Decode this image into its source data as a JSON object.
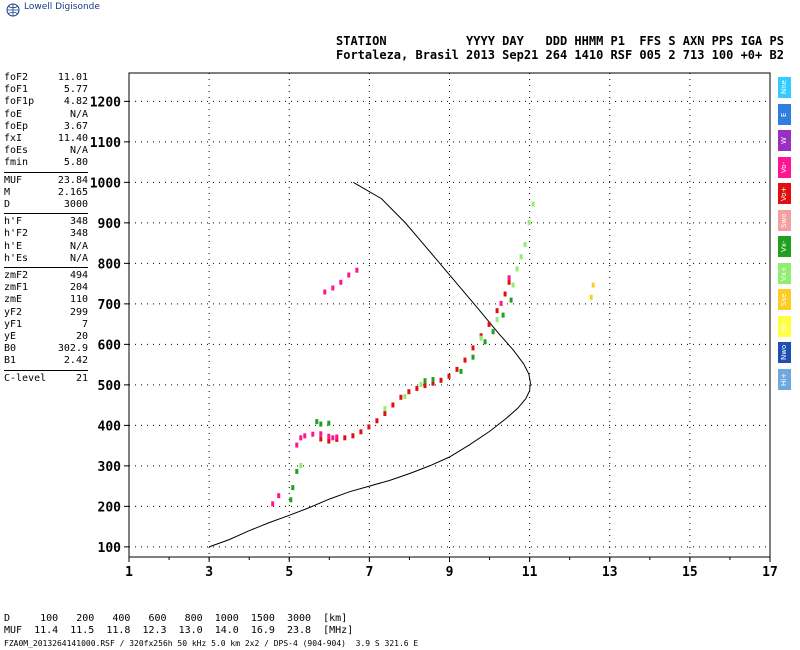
{
  "app": {
    "brand": "Lowell Digisonde"
  },
  "header": {
    "line1": "STATION           YYYY DAY   DDD HHMM P1  FFS S AXN PPS IGA PS",
    "line2": "Fortaleza, Brasil 2013 Sep21 264 1410 RSF 005 2 713 100 +0+ B2"
  },
  "params": [
    [
      {
        "k": "foF2",
        "v": "11.01"
      },
      {
        "k": "foF1",
        "v": "5.77"
      },
      {
        "k": "foF1p",
        "v": "4.82"
      },
      {
        "k": "foE",
        "v": "N/A"
      },
      {
        "k": "foEp",
        "v": "3.67"
      },
      {
        "k": "fxI",
        "v": "11.40"
      },
      {
        "k": "foEs",
        "v": "N/A"
      },
      {
        "k": "fmin",
        "v": "5.80"
      }
    ],
    [
      {
        "k": "MUF",
        "v": "23.84"
      },
      {
        "k": "M",
        "v": "2.165"
      },
      {
        "k": "D",
        "v": "3000"
      }
    ],
    [
      {
        "k": "h'F",
        "v": "348"
      },
      {
        "k": "h'F2",
        "v": "348"
      },
      {
        "k": "h'E",
        "v": "N/A"
      },
      {
        "k": "h'Es",
        "v": "N/A"
      }
    ],
    [
      {
        "k": "zmF2",
        "v": "494"
      },
      {
        "k": "zmF1",
        "v": "204"
      },
      {
        "k": "zmE",
        "v": "110"
      },
      {
        "k": "yF2",
        "v": "299"
      },
      {
        "k": "yF1",
        "v": "7"
      },
      {
        "k": "yE",
        "v": "20"
      },
      {
        "k": "B0",
        "v": "302.9"
      },
      {
        "k": "B1",
        "v": "2.42"
      }
    ],
    [
      {
        "k": "C-level",
        "v": "21"
      }
    ]
  ],
  "legend": [
    {
      "label": "Nne",
      "color": "#33ccff"
    },
    {
      "label": "E",
      "color": "#2f7fe0"
    },
    {
      "label": "W",
      "color": "#9b2fc0"
    },
    {
      "label": "Vo-",
      "color": "#ff1493"
    },
    {
      "label": "Vo+",
      "color": "#e01010"
    },
    {
      "label": "Swo",
      "color": "#f4a0a0"
    },
    {
      "label": "Vx-",
      "color": "#20a020"
    },
    {
      "label": "Vx+",
      "color": "#90ee70"
    },
    {
      "label": "Sse",
      "color": "#ffcc22"
    },
    {
      "label": "Hi-",
      "color": "#ffff44"
    },
    {
      "label": "Nwo",
      "color": "#1f4fb0"
    },
    {
      "label": "Hi+",
      "color": "#6fa8e0"
    }
  ],
  "muf_table": {
    "line1": "D     100   200   400   600   800  1000  1500  3000  [km]",
    "line2": "MUF  11.4  11.5  11.8  12.3  13.0  14.0  16.9  23.8  [MHz]"
  },
  "footer": {
    "text": "FZA0M_2013264141000.RSF / 320fx256h 50 kHz 5.0 km 2x2 / DPS-4 (904-904)  3.9 S 321.6 E"
  },
  "chart_data": {
    "type": "scatter",
    "x_ticks": [
      1,
      3,
      5,
      7,
      9,
      11,
      13,
      15,
      17
    ],
    "y_ticks": [
      100,
      200,
      300,
      400,
      500,
      600,
      700,
      800,
      900,
      1000,
      1100,
      1200
    ],
    "xlim": [
      1,
      17
    ],
    "ylim": [
      75,
      1270
    ],
    "grid": true,
    "colors": {
      "o_mode": "#e01010",
      "o_mode_alt": "#ff1493",
      "x_mode": "#20a020",
      "x_mode_light": "#90ee70",
      "profile": "#000000",
      "es": "#ffcc22"
    },
    "series": [
      {
        "name": "Vo+",
        "points": [
          [
            5.8,
            365
          ],
          [
            6.0,
            360
          ],
          [
            6.2,
            364
          ],
          [
            6.4,
            368
          ],
          [
            6.6,
            373
          ],
          [
            6.8,
            383
          ],
          [
            7.0,
            395
          ],
          [
            7.2,
            410
          ],
          [
            7.4,
            428
          ],
          [
            7.6,
            449
          ],
          [
            7.8,
            468
          ],
          [
            8.0,
            482
          ],
          [
            8.2,
            490
          ],
          [
            8.4,
            497
          ],
          [
            8.6,
            503
          ],
          [
            8.8,
            510
          ],
          [
            9.0,
            520
          ],
          [
            9.2,
            537
          ],
          [
            9.4,
            560
          ],
          [
            9.6,
            590
          ],
          [
            9.8,
            620
          ],
          [
            10.0,
            648
          ],
          [
            10.2,
            682
          ],
          [
            10.4,
            723
          ],
          [
            10.5,
            752
          ]
        ]
      },
      {
        "name": "Vo-",
        "points": [
          [
            4.6,
            205
          ],
          [
            4.75,
            225
          ],
          [
            5.2,
            350
          ],
          [
            5.3,
            368
          ],
          [
            5.4,
            373
          ],
          [
            5.6,
            377
          ],
          [
            5.8,
            378
          ],
          [
            6.0,
            372
          ],
          [
            6.1,
            368
          ],
          [
            6.2,
            370
          ],
          [
            5.9,
            728
          ],
          [
            6.1,
            738
          ],
          [
            6.3,
            752
          ],
          [
            6.5,
            770
          ],
          [
            6.7,
            782
          ],
          [
            10.3,
            700
          ],
          [
            10.5,
            763
          ]
        ]
      },
      {
        "name": "Vx-",
        "points": [
          [
            5.2,
            285
          ],
          [
            5.1,
            245
          ],
          [
            5.05,
            215
          ],
          [
            5.7,
            408
          ],
          [
            5.8,
            402
          ],
          [
            6.0,
            404
          ],
          [
            8.4,
            509
          ],
          [
            8.6,
            512
          ],
          [
            9.3,
            532
          ],
          [
            9.6,
            567
          ],
          [
            9.9,
            605
          ],
          [
            10.1,
            630
          ],
          [
            10.35,
            671
          ],
          [
            10.55,
            708
          ]
        ]
      },
      {
        "name": "Vx+",
        "points": [
          [
            5.3,
            300
          ],
          [
            7.4,
            440
          ],
          [
            7.9,
            470
          ],
          [
            8.3,
            500
          ],
          [
            9.8,
            614
          ],
          [
            10.2,
            660
          ],
          [
            10.6,
            745
          ],
          [
            10.7,
            785
          ],
          [
            10.8,
            815
          ],
          [
            10.9,
            845
          ],
          [
            11.0,
            900
          ],
          [
            11.1,
            945
          ]
        ]
      },
      {
        "name": "Sse",
        "points": [
          [
            12.6,
            745
          ],
          [
            12.55,
            715
          ]
        ]
      }
    ],
    "profile": {
      "x": [
        3.0,
        3.5,
        4.0,
        4.5,
        5.0,
        5.5,
        6.0,
        6.5,
        7.0,
        7.5,
        8.0,
        8.5,
        9.0,
        9.5,
        10.0,
        10.4,
        10.7,
        10.9,
        11.0,
        11.02,
        10.98,
        10.85,
        10.6,
        10.2,
        9.7,
        9.1,
        8.5,
        7.9,
        7.3,
        6.6
      ],
      "y": [
        100,
        118,
        140,
        160,
        178,
        197,
        218,
        236,
        250,
        264,
        281,
        300,
        322,
        352,
        385,
        416,
        442,
        465,
        485,
        505,
        527,
        552,
        585,
        630,
        690,
        760,
        830,
        900,
        960,
        1000
      ]
    }
  }
}
